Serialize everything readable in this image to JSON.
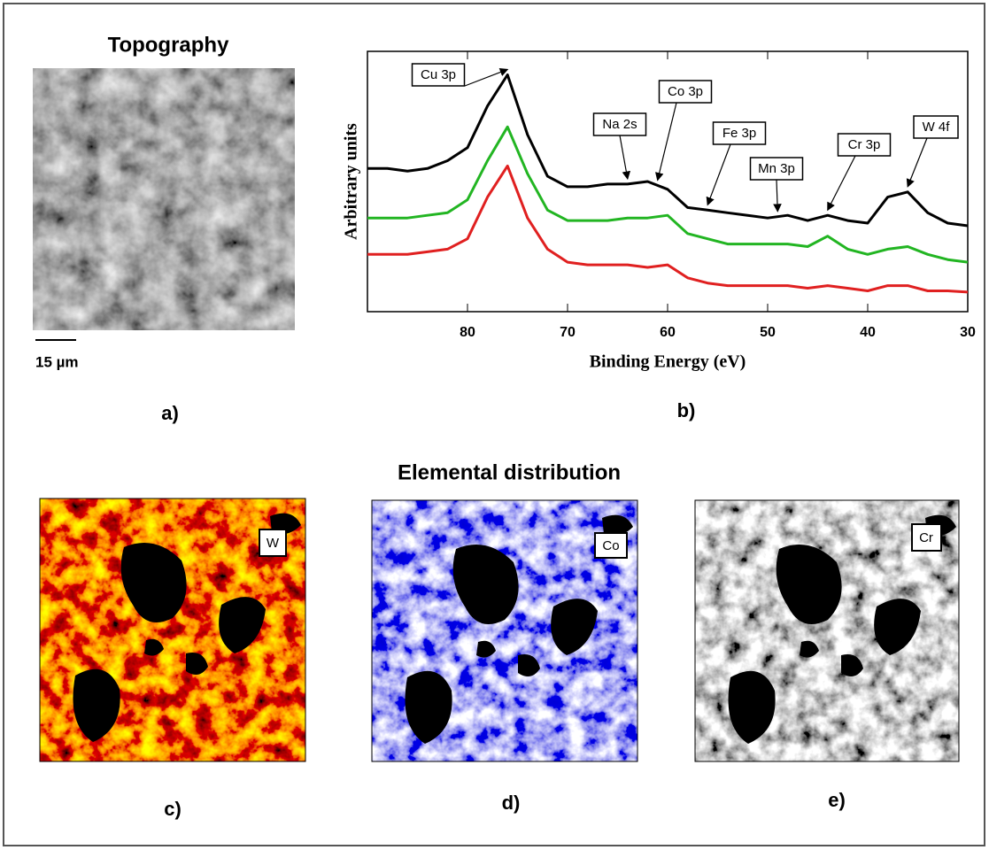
{
  "panels": {
    "topography_title": "Topography",
    "scale_bar": "15 µm",
    "a": "a)",
    "b": "b)",
    "elemental_title": "Elemental distribution",
    "c": "c)",
    "d": "d)",
    "e": "e)",
    "map_c": "W",
    "map_d": "Co",
    "map_e": "Cr"
  },
  "chart_data": {
    "type": "line",
    "x_label": "Binding Energy (eV)",
    "y_label": "Arbitrary units",
    "x": [
      90,
      88,
      86,
      84,
      82,
      80,
      78,
      76,
      74,
      72,
      70,
      68,
      66,
      64,
      62,
      60,
      58,
      56,
      54,
      52,
      50,
      48,
      46,
      44,
      42,
      40,
      38,
      36,
      34,
      32,
      30
    ],
    "xlim": [
      90,
      30
    ],
    "xticks": [
      80,
      70,
      60,
      50,
      40,
      30
    ],
    "ylim": [
      0,
      10
    ],
    "series": [
      {
        "color": "#000000",
        "values": [
          5.5,
          5.5,
          5.4,
          5.5,
          5.8,
          6.3,
          7.9,
          9.1,
          6.8,
          5.2,
          4.8,
          4.8,
          4.9,
          4.9,
          5.0,
          4.7,
          4.0,
          3.9,
          3.8,
          3.7,
          3.6,
          3.7,
          3.5,
          3.7,
          3.5,
          3.4,
          4.4,
          4.6,
          3.8,
          3.4,
          3.3
        ]
      },
      {
        "color": "#22b522",
        "values": [
          3.6,
          3.6,
          3.6,
          3.7,
          3.8,
          4.3,
          5.8,
          7.1,
          5.3,
          3.9,
          3.5,
          3.5,
          3.5,
          3.6,
          3.6,
          3.7,
          3.0,
          2.8,
          2.6,
          2.6,
          2.6,
          2.6,
          2.5,
          2.9,
          2.4,
          2.2,
          2.4,
          2.5,
          2.2,
          2.0,
          1.9
        ]
      },
      {
        "color": "#e02020",
        "values": [
          2.2,
          2.2,
          2.2,
          2.3,
          2.4,
          2.8,
          4.4,
          5.6,
          3.6,
          2.4,
          1.9,
          1.8,
          1.8,
          1.8,
          1.7,
          1.8,
          1.3,
          1.1,
          1.0,
          1.0,
          1.0,
          1.0,
          0.9,
          1.0,
          0.9,
          0.8,
          1.0,
          1.0,
          0.8,
          0.8,
          0.75
        ]
      }
    ],
    "annotations": [
      {
        "text": "Cu 3p",
        "x": 76
      },
      {
        "text": "Na 2s",
        "x": 64
      },
      {
        "text": "Co 3p",
        "x": 61
      },
      {
        "text": "Fe 3p",
        "x": 56
      },
      {
        "text": "Mn 3p",
        "x": 49
      },
      {
        "text": "Cr 3p",
        "x": 44
      },
      {
        "text": "W 4f",
        "x": 36
      }
    ]
  }
}
